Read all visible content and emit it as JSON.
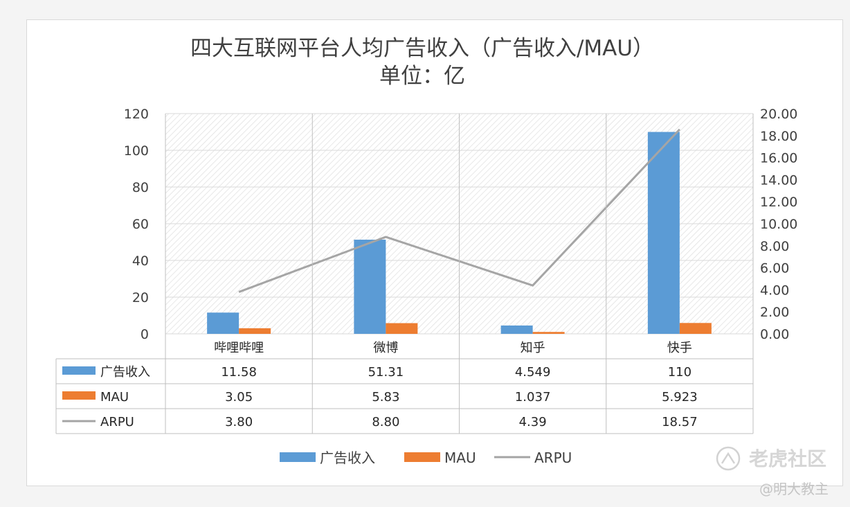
{
  "chart_data": {
    "type": "bar",
    "title": "四大互联网平台人均广告收入（广告收入/MAU）",
    "subtitle": "单位：亿",
    "categories": [
      "哔哩哔哩",
      "微博",
      "知乎",
      "快手"
    ],
    "series": [
      {
        "name": "广告收入",
        "type": "bar",
        "axis": "left",
        "values": [
          11.58,
          51.31,
          4.549,
          110
        ],
        "labels": [
          "11.58",
          "51.31",
          "4.549",
          "110"
        ],
        "color": "#5b9bd5"
      },
      {
        "name": "MAU",
        "type": "bar",
        "axis": "left",
        "values": [
          3.05,
          5.83,
          1.037,
          5.923
        ],
        "labels": [
          "3.05",
          "5.83",
          "1.037",
          "5.923"
        ],
        "color": "#ed7d31"
      },
      {
        "name": "ARPU",
        "type": "line",
        "axis": "right",
        "values": [
          3.8,
          8.8,
          4.39,
          18.57
        ],
        "labels": [
          "3.80",
          "8.80",
          "4.39",
          "18.57"
        ],
        "color": "#a5a5a5"
      }
    ],
    "y_left": {
      "min": 0,
      "max": 120,
      "ticks": [
        "0",
        "20",
        "40",
        "60",
        "80",
        "100",
        "120"
      ]
    },
    "y_right": {
      "min": 0,
      "max": 20,
      "ticks": [
        "0.00",
        "2.00",
        "4.00",
        "6.00",
        "8.00",
        "10.00",
        "12.00",
        "14.00",
        "16.00",
        "18.00",
        "20.00"
      ]
    },
    "data_table": true,
    "legend_position": "bottom",
    "grid": true
  },
  "watermark": {
    "text": "老虎社区",
    "sub": "@明大教主",
    "icon": "tiger-community-logo-icon"
  }
}
